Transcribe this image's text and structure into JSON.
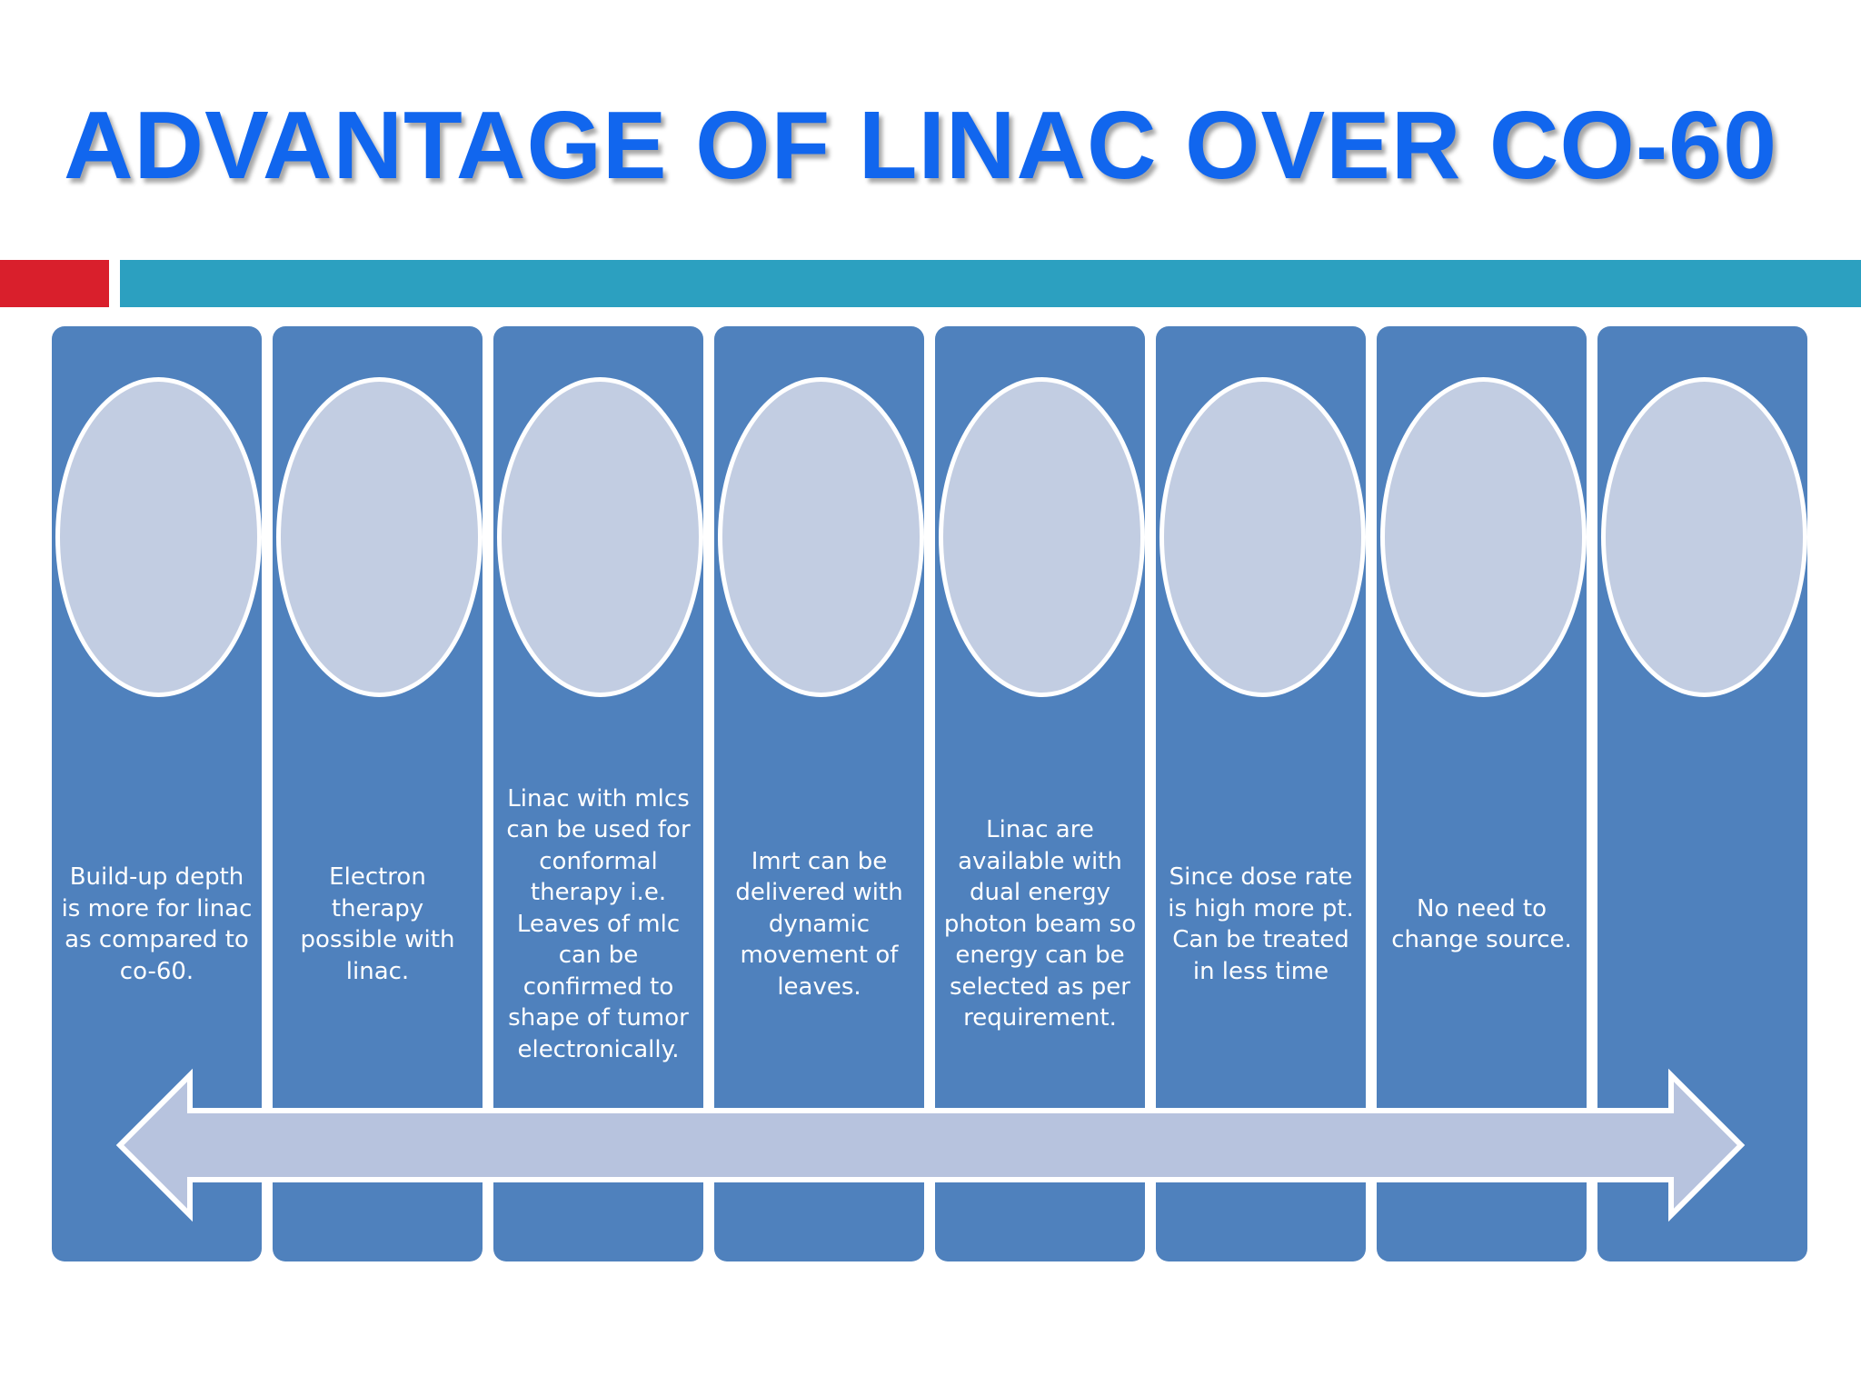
{
  "title": "ADVANTAGE OF LINAC OVER CO-60",
  "colors": {
    "title": "#1166ee",
    "accent_red": "#d91f2c",
    "accent_teal": "#2ca0c0",
    "column": "#4f81bd",
    "oval": "#c2cde2",
    "arrow": "#b7c3de"
  },
  "items": [
    {
      "text": "Build-up depth is more for linac as compared to co-60."
    },
    {
      "text": "Electron therapy possible with linac."
    },
    {
      "text": "Linac with mlcs can be used for conformal therapy i.e. Leaves of mlc can be confirmed to shape of tumor electronically."
    },
    {
      "text": "Imrt can be delivered with dynamic movement of leaves."
    },
    {
      "text": "Linac are available with dual energy photon beam so energy can be selected as per requirement."
    },
    {
      "text": "Since dose rate is high more pt. Can be treated in less time"
    },
    {
      "text": "No need to change source."
    },
    {
      "text": ""
    }
  ],
  "arrow": {
    "icon": "double-headed-arrow-icon"
  }
}
